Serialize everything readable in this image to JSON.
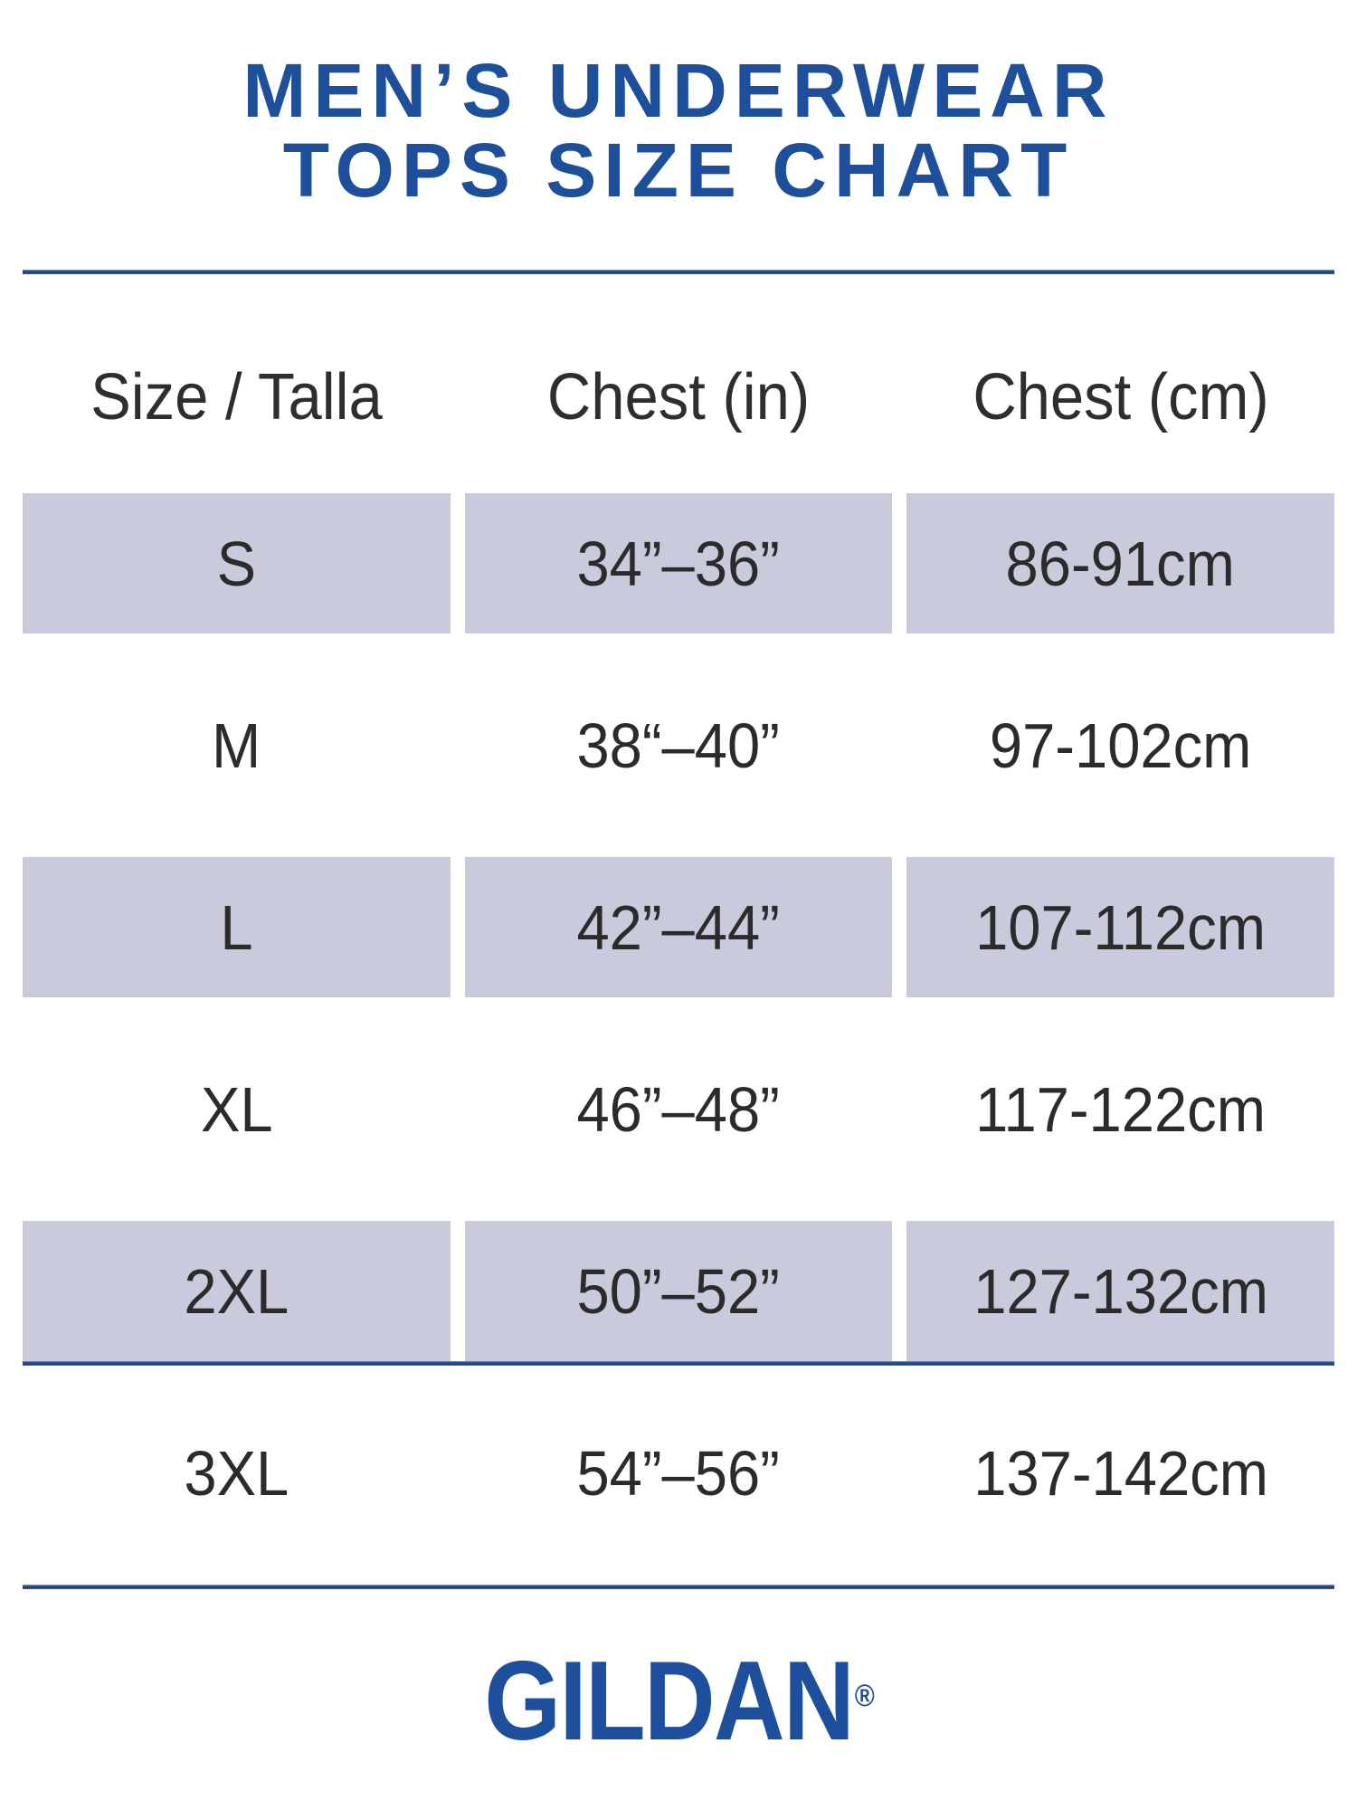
{
  "title": {
    "line1": "MEN’S UNDERWEAR",
    "line2": "TOPS SIZE CHART"
  },
  "table": {
    "headers": [
      "Size / Talla",
      "Chest (in)",
      "Chest (cm)"
    ],
    "rows": [
      {
        "size": "S",
        "chest_in": "34”–36”",
        "chest_cm": "86-91cm",
        "shaded": true
      },
      {
        "size": "M",
        "chest_in": "38“–40”",
        "chest_cm": "97-102cm",
        "shaded": false
      },
      {
        "size": "L",
        "chest_in": "42”–44”",
        "chest_cm": "107-112cm",
        "shaded": true
      },
      {
        "size": "XL",
        "chest_in": "46”–48”",
        "chest_cm": "117-122cm",
        "shaded": false
      },
      {
        "size": "2XL",
        "chest_in": "50”–52”",
        "chest_cm": "127-132cm",
        "shaded": true
      },
      {
        "size": "3XL",
        "chest_in": "54”–56”",
        "chest_cm": "137-142cm",
        "shaded": false
      }
    ]
  },
  "footer": {
    "brand": "GILDAN",
    "registered_mark": "®"
  },
  "colors": {
    "brand_blue": "#1e4f9b",
    "logo_blue": "#1d4f9c",
    "rule_blue": "#24498c",
    "row_shade": "#c9cadb",
    "text_dark": "#2b2b2b"
  },
  "chart_data": {
    "type": "table",
    "title": "MEN’S UNDERWEAR TOPS SIZE CHART",
    "columns": [
      "Size / Talla",
      "Chest (in)",
      "Chest (cm)"
    ],
    "rows": [
      [
        "S",
        "34”–36”",
        "86-91cm"
      ],
      [
        "M",
        "38“–40”",
        "97-102cm"
      ],
      [
        "L",
        "42”–44”",
        "107-112cm"
      ],
      [
        "XL",
        "46”–48”",
        "117-122cm"
      ],
      [
        "2XL",
        "50”–52”",
        "127-132cm"
      ],
      [
        "3XL",
        "54”–56”",
        "137-142cm"
      ]
    ],
    "shaded_rows": [
      "S",
      "L",
      "2XL"
    ],
    "legend_position": "none",
    "grid": false
  }
}
